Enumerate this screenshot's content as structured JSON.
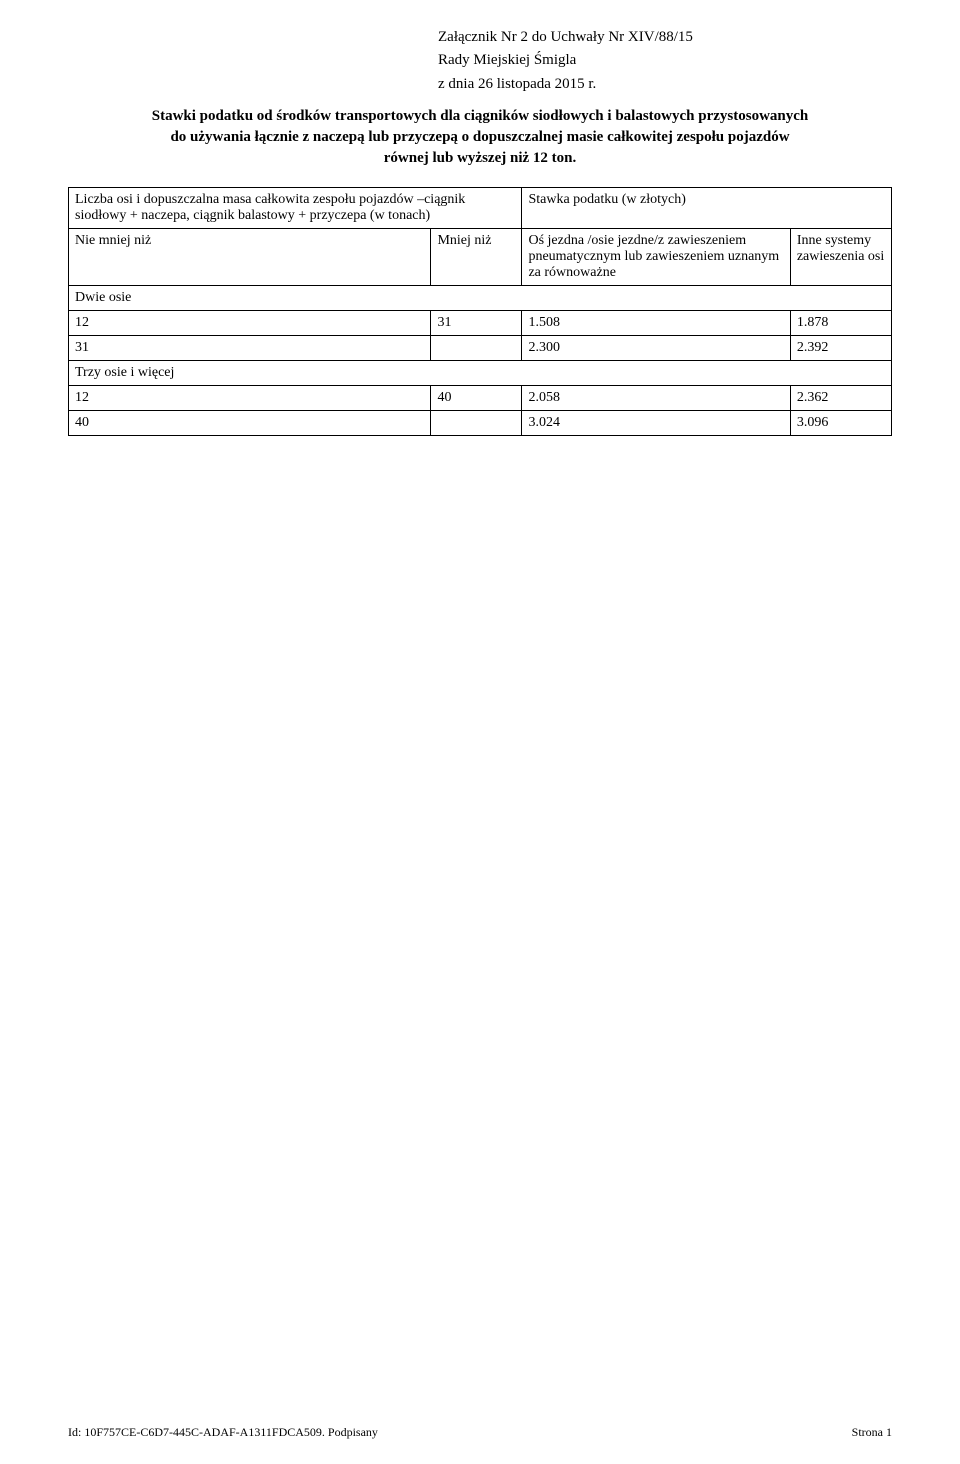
{
  "header": {
    "line1": "Załącznik Nr 2 do Uchwały Nr XIV/88/15",
    "line2": "Rady Miejskiej Śmigla",
    "line3": "z dnia 26 listopada 2015 r."
  },
  "title": {
    "line1": "Stawki podatku od środków transportowych dla ciągników siodłowych i balastowych przystosowanych",
    "line2": "do używania łącznie z naczepą lub przyczepą o dopuszczalnej masie całkowitej zespołu pojazdów",
    "line3": "równej lub wyższej niż 12 ton."
  },
  "table": {
    "col_sum_header": "Liczba osi i dopuszczalna masa całkowita zespołu pojazdów –ciągnik siodłowy + naczepa, ciągnik balastowy + przyczepa (w tonach)",
    "rate_header": "Stawka podatku (w złotych)",
    "col_a": "Nie mniej niż",
    "col_b": "Mniej niż",
    "col_c": "Oś jezdna /osie jezdne/z zawieszeniem pneumatycznym lub zawieszeniem uznanym za równoważne",
    "col_d": "Inne systemy zawieszenia osi",
    "section1": "Dwie osie",
    "row1": {
      "a": "12",
      "b": "31",
      "c": "1.508",
      "d": "1.878"
    },
    "row2": {
      "a": "31",
      "b": "",
      "c": "2.300",
      "d": "2.392"
    },
    "section2": "Trzy osie i więcej",
    "row3": {
      "a": "12",
      "b": "40",
      "c": "2.058",
      "d": "2.362"
    },
    "row4": {
      "a": "40",
      "b": "",
      "c": "3.024",
      "d": "3.096"
    }
  },
  "footer": {
    "left": "Id: 10F757CE-C6D7-445C-ADAF-A1311FDCA509. Podpisany",
    "right": "Strona 1"
  }
}
